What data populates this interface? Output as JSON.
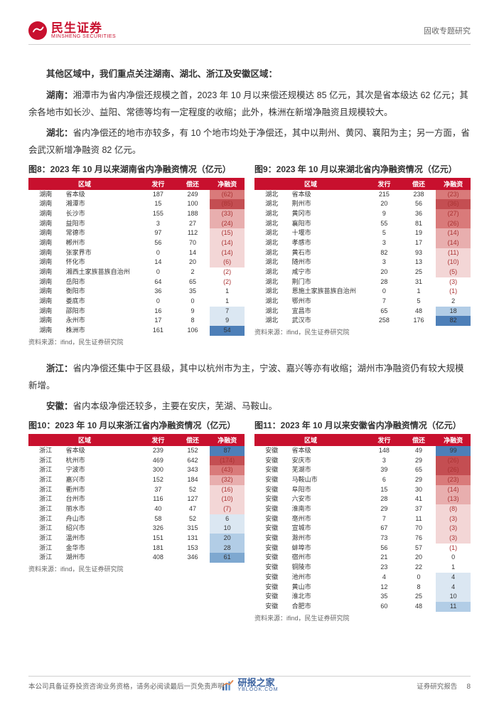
{
  "header": {
    "brand_cn": "民生证券",
    "brand_en": "MINSHENG SECURITIES",
    "category": "固收专题研究"
  },
  "body": {
    "intro": "其他区域中，我们重点关注湖南、湖北、浙江及安徽区域：",
    "hunan_label": "湖南：",
    "hunan_text": "湘潭市为省内净偿还规模之首，2023 年 10 月以来偿还规模达 85 亿元，其次是省本级达 62 亿元；其余各地市如长沙、益阳、常德等均有一定程度的收缩；此外，株洲在新增净融资且规模较大。",
    "hubei_label": "湖北：",
    "hubei_text": "省内净偿还的地市亦较多，有 10 个地市均处于净偿还，其中以荆州、黄冈、襄阳为主；另一方面，省会武汉新增净融资 82 亿元。",
    "zhejiang_label": "浙江：",
    "zhejiang_text": "省内净偿还集中于区县级，其中以杭州市为主，宁波、嘉兴等亦有收缩；湖州市净融资仍有较大规模新增。",
    "anhui_label": "安徽：",
    "anhui_text": "省内本级净偿还较多，主要在安庆，芜湖、马鞍山。"
  },
  "figures": {
    "source_label": "资料来源：ifind，民生证券研究院",
    "headers": {
      "region": "区域",
      "city": "",
      "issue": "发行",
      "repay": "偿还",
      "net": "净融资"
    },
    "colors": {
      "header_bg": "#c8102e",
      "header_fg": "#ffffff",
      "neg4": "#c44e52",
      "neg3": "#d97a7a",
      "neg2": "#e8aeae",
      "neg1": "#f3d6d6",
      "pos1": "#dbe7f2",
      "pos2": "#b2cde6",
      "pos3": "#7ea8d0",
      "pos4": "#4d7fb8",
      "neutral": "#ffffff",
      "net_text_neg": "#aa3333",
      "net_text_pos": "#333333"
    },
    "f8": {
      "title": "图8：2023 年 10 月以来湖南省内净融资情况（亿元）",
      "region": "湖南",
      "rows": [
        {
          "city": "省本级",
          "issue": "187",
          "repay": "249",
          "net": "(62)",
          "shade": "neg3"
        },
        {
          "city": "湘潭市",
          "issue": "15",
          "repay": "100",
          "net": "(85)",
          "shade": "neg4"
        },
        {
          "city": "长沙市",
          "issue": "155",
          "repay": "188",
          "net": "(33)",
          "shade": "neg2"
        },
        {
          "city": "益阳市",
          "issue": "3",
          "repay": "27",
          "net": "(24)",
          "shade": "neg2"
        },
        {
          "city": "常德市",
          "issue": "97",
          "repay": "112",
          "net": "(15)",
          "shade": "neg1"
        },
        {
          "city": "郴州市",
          "issue": "56",
          "repay": "70",
          "net": "(14)",
          "shade": "neg1"
        },
        {
          "city": "张家界市",
          "issue": "0",
          "repay": "14",
          "net": "(14)",
          "shade": "neg1"
        },
        {
          "city": "怀化市",
          "issue": "14",
          "repay": "20",
          "net": "(6)",
          "shade": "neg1"
        },
        {
          "city": "湘西土家族苗族自治州",
          "issue": "0",
          "repay": "2",
          "net": "(2)",
          "shade": "neutral"
        },
        {
          "city": "岳阳市",
          "issue": "64",
          "repay": "65",
          "net": "(2)",
          "shade": "neutral"
        },
        {
          "city": "衡阳市",
          "issue": "36",
          "repay": "35",
          "net": "1",
          "shade": "neutral"
        },
        {
          "city": "娄底市",
          "issue": "0",
          "repay": "0",
          "net": "1",
          "shade": "neutral"
        },
        {
          "city": "邵阳市",
          "issue": "16",
          "repay": "9",
          "net": "7",
          "shade": "pos1"
        },
        {
          "city": "永州市",
          "issue": "17",
          "repay": "8",
          "net": "9",
          "shade": "pos1"
        },
        {
          "city": "株洲市",
          "issue": "161",
          "repay": "106",
          "net": "54",
          "shade": "pos4"
        }
      ]
    },
    "f9": {
      "title": "图9：2023 年 10 月以来湖北省内净融资情况（亿元）",
      "region": "湖北",
      "rows": [
        {
          "city": "省本级",
          "issue": "215",
          "repay": "238",
          "net": "(23)",
          "shade": "neg3"
        },
        {
          "city": "荆州市",
          "issue": "20",
          "repay": "56",
          "net": "(36)",
          "shade": "neg4"
        },
        {
          "city": "黄冈市",
          "issue": "9",
          "repay": "36",
          "net": "(27)",
          "shade": "neg3"
        },
        {
          "city": "襄阳市",
          "issue": "55",
          "repay": "81",
          "net": "(26)",
          "shade": "neg3"
        },
        {
          "city": "十堰市",
          "issue": "5",
          "repay": "19",
          "net": "(14)",
          "shade": "neg2"
        },
        {
          "city": "孝感市",
          "issue": "3",
          "repay": "17",
          "net": "(14)",
          "shade": "neg2"
        },
        {
          "city": "黄石市",
          "issue": "82",
          "repay": "93",
          "net": "(11)",
          "shade": "neg1"
        },
        {
          "city": "随州市",
          "issue": "3",
          "repay": "13",
          "net": "(10)",
          "shade": "neg1"
        },
        {
          "city": "咸宁市",
          "issue": "20",
          "repay": "25",
          "net": "(5)",
          "shade": "neg1"
        },
        {
          "city": "荆门市",
          "issue": "28",
          "repay": "31",
          "net": "(3)",
          "shade": "neutral"
        },
        {
          "city": "恩施土家族苗族自治州",
          "issue": "0",
          "repay": "1",
          "net": "(1)",
          "shade": "neutral"
        },
        {
          "city": "鄂州市",
          "issue": "7",
          "repay": "5",
          "net": "2",
          "shade": "neutral"
        },
        {
          "city": "宜昌市",
          "issue": "65",
          "repay": "48",
          "net": "18",
          "shade": "pos2"
        },
        {
          "city": "武汉市",
          "issue": "258",
          "repay": "176",
          "net": "82",
          "shade": "pos4"
        }
      ]
    },
    "f10": {
      "title": "图10：2023 年 10 月以来浙江省内净融资情况（亿元）",
      "region": "浙江",
      "rows": [
        {
          "city": "省本级",
          "issue": "239",
          "repay": "152",
          "net": "87",
          "shade": "pos4"
        },
        {
          "city": "杭州市",
          "issue": "469",
          "repay": "642",
          "net": "(174)",
          "shade": "neg4"
        },
        {
          "city": "宁波市",
          "issue": "300",
          "repay": "343",
          "net": "(43)",
          "shade": "neg3"
        },
        {
          "city": "嘉兴市",
          "issue": "152",
          "repay": "184",
          "net": "(32)",
          "shade": "neg2"
        },
        {
          "city": "衢州市",
          "issue": "37",
          "repay": "52",
          "net": "(16)",
          "shade": "neg1"
        },
        {
          "city": "台州市",
          "issue": "116",
          "repay": "127",
          "net": "(10)",
          "shade": "neg1"
        },
        {
          "city": "丽水市",
          "issue": "40",
          "repay": "47",
          "net": "(7)",
          "shade": "neg1"
        },
        {
          "city": "舟山市",
          "issue": "58",
          "repay": "52",
          "net": "6",
          "shade": "pos1"
        },
        {
          "city": "绍兴市",
          "issue": "326",
          "repay": "315",
          "net": "10",
          "shade": "pos1"
        },
        {
          "city": "温州市",
          "issue": "151",
          "repay": "131",
          "net": "20",
          "shade": "pos2"
        },
        {
          "city": "金华市",
          "issue": "181",
          "repay": "153",
          "net": "28",
          "shade": "pos2"
        },
        {
          "city": "湖州市",
          "issue": "408",
          "repay": "346",
          "net": "61",
          "shade": "pos3"
        }
      ]
    },
    "f11": {
      "title": "图11：2023 年 10 月以来安徽省内净融资情况（亿元）",
      "region": "安徽",
      "rows": [
        {
          "city": "省本级",
          "issue": "148",
          "repay": "49",
          "net": "99",
          "shade": "pos4"
        },
        {
          "city": "安庆市",
          "issue": "3",
          "repay": "29",
          "net": "(26)",
          "shade": "neg4"
        },
        {
          "city": "芜湖市",
          "issue": "39",
          "repay": "65",
          "net": "(26)",
          "shade": "neg4"
        },
        {
          "city": "马鞍山市",
          "issue": "6",
          "repay": "29",
          "net": "(23)",
          "shade": "neg3"
        },
        {
          "city": "阜阳市",
          "issue": "15",
          "repay": "30",
          "net": "(14)",
          "shade": "neg2"
        },
        {
          "city": "六安市",
          "issue": "28",
          "repay": "41",
          "net": "(13)",
          "shade": "neg2"
        },
        {
          "city": "淮南市",
          "issue": "29",
          "repay": "37",
          "net": "(8)",
          "shade": "neg1"
        },
        {
          "city": "亳州市",
          "issue": "7",
          "repay": "11",
          "net": "(3)",
          "shade": "neg1"
        },
        {
          "city": "宣城市",
          "issue": "67",
          "repay": "70",
          "net": "(3)",
          "shade": "neg1"
        },
        {
          "city": "滁州市",
          "issue": "73",
          "repay": "76",
          "net": "(3)",
          "shade": "neg1"
        },
        {
          "city": "蚌埠市",
          "issue": "56",
          "repay": "57",
          "net": "(1)",
          "shade": "neutral"
        },
        {
          "city": "宿州市",
          "issue": "21",
          "repay": "20",
          "net": "0",
          "shade": "neutral"
        },
        {
          "city": "铜陵市",
          "issue": "23",
          "repay": "22",
          "net": "1",
          "shade": "neutral"
        },
        {
          "city": "池州市",
          "issue": "4",
          "repay": "0",
          "net": "4",
          "shade": "pos1"
        },
        {
          "city": "黄山市",
          "issue": "12",
          "repay": "8",
          "net": "4",
          "shade": "pos1"
        },
        {
          "city": "淮北市",
          "issue": "35",
          "repay": "25",
          "net": "10",
          "shade": "pos1"
        },
        {
          "city": "合肥市",
          "issue": "60",
          "repay": "48",
          "net": "11",
          "shade": "pos2"
        }
      ]
    }
  },
  "footer": {
    "left": "本公司具备证券投资咨询业务资格，请务必阅读最后一页免责声明",
    "right": "证券研究报告",
    "page": "8"
  },
  "watermark": {
    "cn": "研报之家",
    "en": "YBLOOK.COM"
  }
}
